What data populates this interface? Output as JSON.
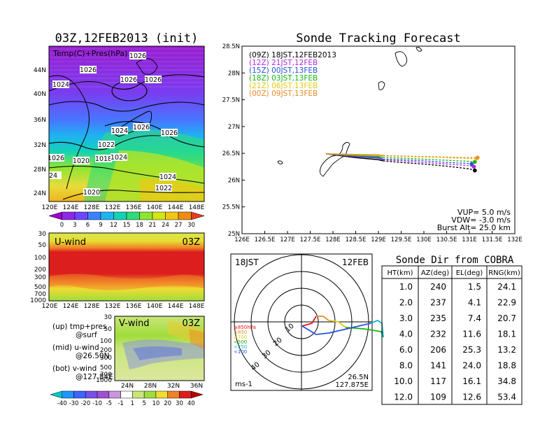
{
  "surface_panel": {
    "title": "03Z,12FEB2013 (init)",
    "label": "Temp(C)+Pres(hPa)",
    "lat_ticks": [
      "44N",
      "40N",
      "36N",
      "32N",
      "28N",
      "24N"
    ],
    "lon_ticks": [
      "120E",
      "124E",
      "128E",
      "132E",
      "136E",
      "140E",
      "144E",
      "148E"
    ],
    "isobars": [
      "1026",
      "1026",
      "1024",
      "1026",
      "1026",
      "1026",
      "1024",
      "1026",
      "1022",
      "1018",
      "1020",
      "1026",
      "1024",
      "1024",
      "1022",
      "1020",
      "24"
    ],
    "colorbar": {
      "values": [
        "0",
        "3",
        "6",
        "9",
        "12",
        "15",
        "18",
        "21",
        "24",
        "27",
        "30"
      ],
      "colors": [
        "#a000c8",
        "#8c28e6",
        "#6e46ff",
        "#3c82ff",
        "#1eb4f0",
        "#14d2b4",
        "#32dc78",
        "#8ce632",
        "#d2e614",
        "#f0c814",
        "#f08c14",
        "#e63c1e"
      ]
    }
  },
  "uwind_panel": {
    "title": "U-wind",
    "time": "03Z",
    "p_ticks": [
      "30",
      "50",
      "100",
      "200",
      "300",
      "500",
      "700",
      "1000"
    ],
    "lon_ticks": [
      "120E",
      "124E",
      "128E",
      "132E",
      "136E",
      "140E",
      "144E",
      "148E"
    ]
  },
  "vwind_panel": {
    "title": "V-wind",
    "time": "03Z",
    "p_ticks": [
      "30",
      "50",
      "100",
      "200",
      "300",
      "500",
      "700",
      "1000"
    ],
    "lat_ticks": [
      "24N",
      "28N",
      "32N",
      "36N"
    ]
  },
  "legend_text": {
    "line1": "(up) tmp+pres",
    "line2": "@surf",
    "line3": "(mid) u-wind",
    "line4": "@26.50N",
    "line5": "(bot) v-wind",
    "line6": "@127.84E"
  },
  "wind_colorbar": {
    "values": [
      "-40",
      "-30",
      "-20",
      "-10",
      "-5",
      "-1",
      "1",
      "5",
      "10",
      "20",
      "30",
      "40"
    ],
    "colors": [
      "#00c8c8",
      "#1e96ff",
      "#3c64ff",
      "#7850e6",
      "#a050d2",
      "#c896dc",
      "#ffffff",
      "#c8e678",
      "#a0dc3c",
      "#f0dc32",
      "#f08228",
      "#dc1e1e",
      "#b40000"
    ]
  },
  "tracking": {
    "title": "Sonde Tracking Forecast",
    "launches": [
      {
        "label": "(09Z)  18JST,12FEB2013",
        "color": "#000000"
      },
      {
        "label": "(12Z)  21JST,12FEB",
        "color": "#b428dc"
      },
      {
        "label": "(15Z)  00JST,13FEB",
        "color": "#2850dc"
      },
      {
        "label": "(18Z)  03JST,13FEB",
        "color": "#14b414"
      },
      {
        "label": "(21Z)  06JST,13FEB",
        "color": "#e6c814"
      },
      {
        "label": "(00Z)  09JST,13FEB",
        "color": "#e68c28"
      }
    ],
    "lat_ticks": [
      "28.5N",
      "28N",
      "27.5N",
      "27N",
      "26.5N",
      "26N",
      "25.5N",
      "25N"
    ],
    "lon_ticks": [
      "126E",
      "126.5E",
      "127E",
      "127.5E",
      "128E",
      "128.5E",
      "129E",
      "129.5E",
      "130E",
      "130.5E",
      "131E",
      "131.5E",
      "132E"
    ],
    "vup": "VUP=  5.0  m/s",
    "vdw": "VDW= -3.0  m/s",
    "burst": "Burst Alt= 25.0  km"
  },
  "hodograph": {
    "time": "18JST",
    "date": "12FEB",
    "ring_labels": [
      "10",
      "20",
      "30",
      "40"
    ],
    "levels": [
      {
        "label": "≥850hPa",
        "color": "#e61414"
      },
      {
        "label": "≥850",
        "color": "#e68c28"
      },
      {
        "label": "≥700",
        "color": "#e6c814"
      },
      {
        "label": "<500",
        "color": "#14b414"
      },
      {
        "label": "<250",
        "color": "#14b4c8"
      },
      {
        "label": "<100",
        "color": "#2850dc"
      }
    ],
    "unit": "ms-1",
    "loc_lat": "26.5N",
    "loc_lon": "127.875E"
  },
  "cobra_table": {
    "title": "Sonde Dir from COBRA",
    "headers": [
      "HT(km)",
      "AZ(deg)",
      "EL(deg)",
      "RNG(km)"
    ],
    "rows": [
      [
        "1.0",
        "240",
        "1.5",
        "24.1"
      ],
      [
        "2.0",
        "237",
        "4.1",
        "22.9"
      ],
      [
        "3.0",
        "235",
        "7.4",
        "20.7"
      ],
      [
        "4.0",
        "232",
        "11.6",
        "18.1"
      ],
      [
        "6.0",
        "206",
        "25.3",
        "13.2"
      ],
      [
        "8.0",
        "141",
        "24.0",
        "18.8"
      ],
      [
        "10.0",
        "117",
        "16.1",
        "34.8"
      ],
      [
        "12.0",
        "109",
        "12.6",
        "53.4"
      ]
    ]
  },
  "chart_data": [
    {
      "type": "heatmap",
      "title": "03Z,12FEB2013 (init)",
      "subtitle": "Temp(C)+Pres(hPa)",
      "xlim": [
        "120E",
        "148E"
      ],
      "ylim": [
        "22N",
        "46N"
      ],
      "colorbar_levels": [
        0,
        3,
        6,
        9,
        12,
        15,
        18,
        21,
        24,
        27,
        30
      ]
    },
    {
      "type": "heatmap",
      "title": "U-wind",
      "xlim": [
        "120E",
        "148E"
      ],
      "ylim": [
        1000,
        30
      ],
      "colorbar_levels": [
        -40,
        -30,
        -20,
        -10,
        -5,
        -1,
        1,
        5,
        10,
        20,
        30,
        40
      ]
    },
    {
      "type": "heatmap",
      "title": "V-wind",
      "xlim": [
        "22N",
        "38N"
      ],
      "ylim": [
        1000,
        30
      ],
      "colorbar_levels": [
        -40,
        -30,
        -20,
        -10,
        -5,
        -1,
        1,
        5,
        10,
        20,
        30,
        40
      ]
    },
    {
      "type": "line",
      "title": "Sonde Tracking Forecast",
      "xlim": [
        126,
        132
      ],
      "ylim": [
        25,
        28.5
      ],
      "series": [
        {
          "name": "(09Z)  18JST,12FEB2013",
          "color": "#000000",
          "lon": [
            127.85,
            128.5,
            129.0,
            129.1,
            129.5,
            130.0,
            130.5,
            131.0,
            131.12
          ],
          "lat": [
            26.49,
            26.42,
            26.38,
            26.36,
            26.33,
            26.3,
            26.26,
            26.21,
            26.18
          ]
        },
        {
          "name": "(12Z)  21JST,12FEB",
          "color": "#b428dc",
          "lon": [
            127.85,
            128.5,
            129.0,
            129.1,
            129.5,
            130.0,
            130.5,
            131.0,
            131.1
          ],
          "lat": [
            26.49,
            26.44,
            26.41,
            26.38,
            26.36,
            26.33,
            26.3,
            26.27,
            26.25
          ]
        },
        {
          "name": "(15Z)  00JST,13FEB",
          "color": "#2850dc",
          "lon": [
            127.85,
            128.5,
            129.0,
            129.1,
            129.5,
            130.0,
            130.5,
            131.0,
            131.05
          ],
          "lat": [
            26.49,
            26.45,
            26.42,
            26.39,
            26.38,
            26.36,
            26.33,
            26.31,
            26.3
          ]
        },
        {
          "name": "(18Z)  03JST,13FEB",
          "color": "#14b414",
          "lon": [
            127.85,
            128.5,
            129.0,
            129.1,
            129.5,
            130.0,
            130.5,
            131.0,
            131.12
          ],
          "lat": [
            26.49,
            26.46,
            26.44,
            26.42,
            26.41,
            26.39,
            26.37,
            26.35,
            26.34
          ]
        },
        {
          "name": "(21Z)  06JST,13FEB",
          "color": "#e6c814",
          "lon": [
            127.85,
            128.5,
            129.0,
            129.1,
            129.5,
            130.0,
            130.5,
            131.0,
            131.15
          ],
          "lat": [
            26.49,
            26.47,
            26.46,
            26.45,
            26.44,
            26.43,
            26.42,
            26.4,
            26.4
          ]
        },
        {
          "name": "(00Z)  09JST,13FEB",
          "color": "#e68c28",
          "lon": [
            127.85,
            128.5,
            129.0,
            129.1,
            129.5,
            130.0,
            130.5,
            131.0,
            131.18
          ],
          "lat": [
            26.49,
            26.48,
            26.47,
            26.46,
            26.45,
            26.44,
            26.43,
            26.42,
            26.42
          ]
        }
      ]
    },
    {
      "type": "table",
      "title": "Sonde Dir from COBRA",
      "columns": [
        "HT(km)",
        "AZ(deg)",
        "EL(deg)",
        "RNG(km)"
      ],
      "rows": [
        [
          1.0,
          240,
          1.5,
          24.1
        ],
        [
          2.0,
          237,
          4.1,
          22.9
        ],
        [
          3.0,
          235,
          7.4,
          20.7
        ],
        [
          4.0,
          232,
          11.6,
          18.1
        ],
        [
          6.0,
          206,
          25.3,
          13.2
        ],
        [
          8.0,
          141,
          24.0,
          18.8
        ],
        [
          10.0,
          117,
          16.1,
          34.8
        ],
        [
          12.0,
          109,
          12.6,
          53.4
        ]
      ]
    }
  ]
}
